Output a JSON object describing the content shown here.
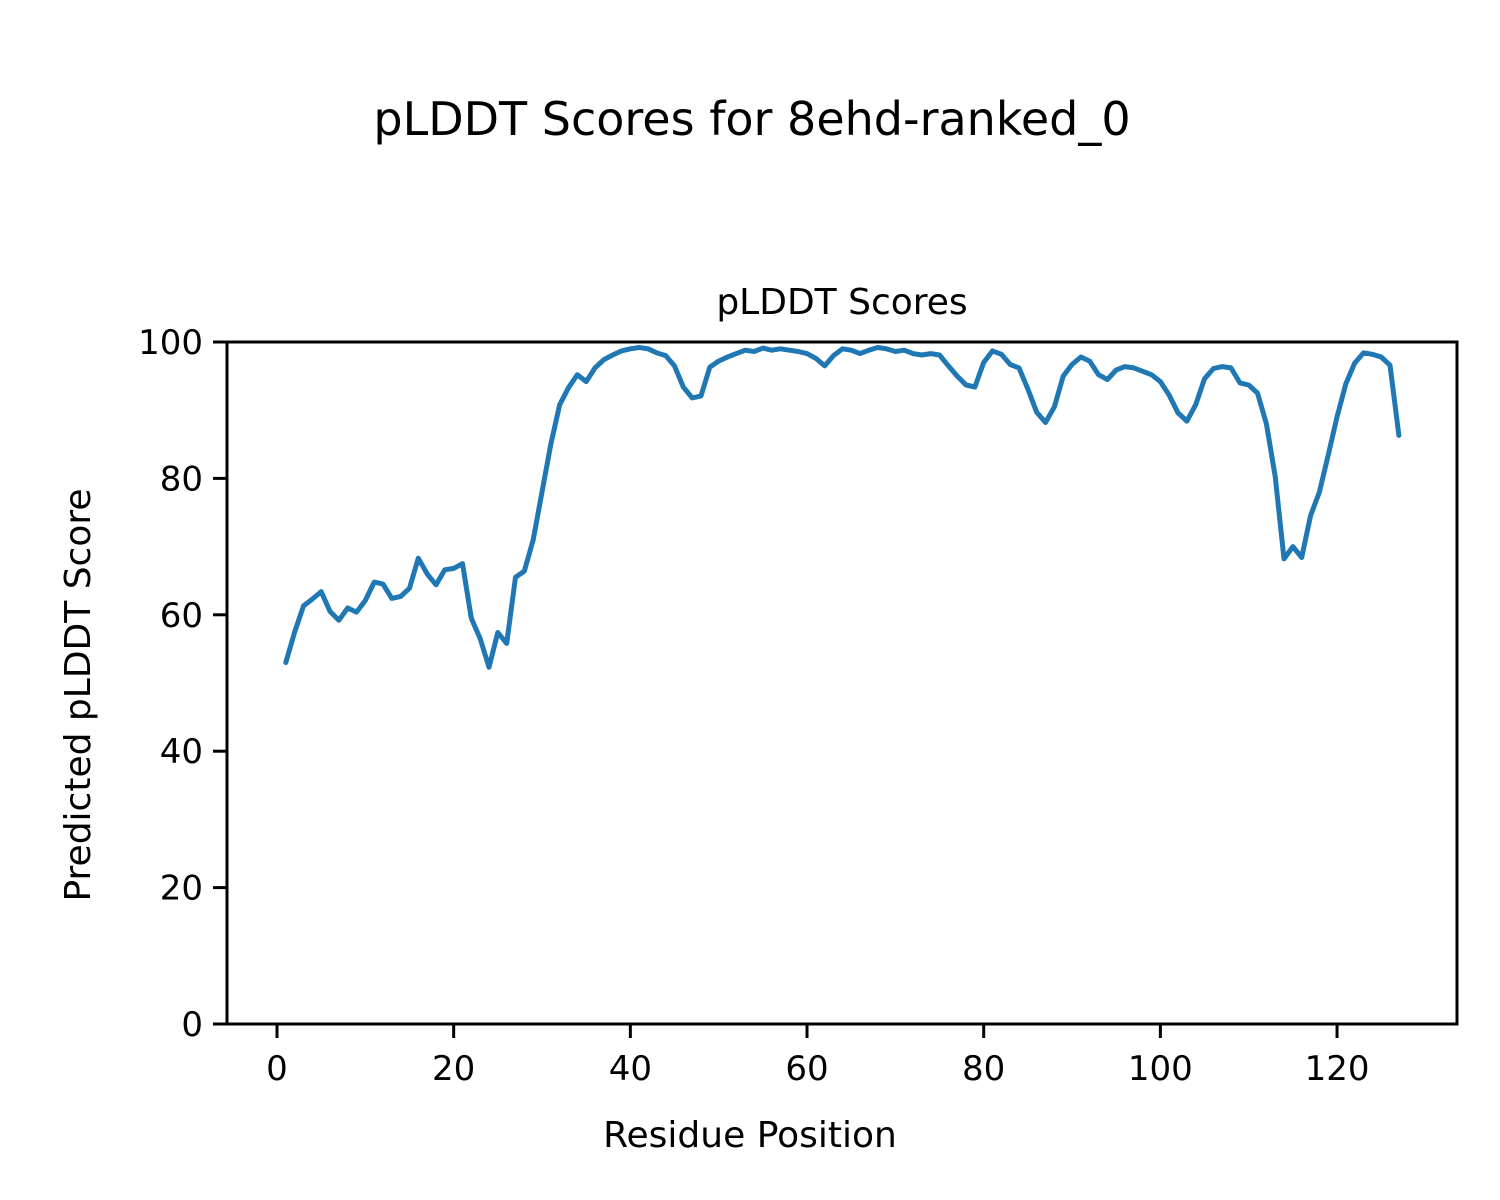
{
  "figure": {
    "title": "pLDDT Scores for 8ehd-ranked_0"
  },
  "chart_data": {
    "type": "line",
    "title": "pLDDT Scores for 8ehd-ranked_0",
    "axes_title": "pLDDT Scores",
    "xlabel": "Residue Position",
    "ylabel": "Predicted pLDDT Score",
    "x_ticks": [
      0,
      20,
      40,
      60,
      80,
      100,
      120
    ],
    "y_ticks": [
      0,
      20,
      40,
      60,
      80,
      100
    ],
    "xlim": [
      -5.66,
      133.58
    ],
    "ylim": [
      0,
      100
    ],
    "grid": false,
    "legend": "none",
    "line_color": "#1f77b4",
    "spine_color": "#000000",
    "series": [
      {
        "name": "pLDDT",
        "x_start": 1,
        "x_step": 1,
        "values": [
          53.0,
          57.5,
          61.3,
          62.3,
          63.4,
          60.5,
          59.2,
          61.0,
          60.4,
          62.1,
          64.8,
          64.5,
          62.4,
          62.7,
          63.9,
          68.3,
          66.0,
          64.4,
          66.6,
          66.8,
          67.5,
          59.5,
          56.5,
          52.3,
          57.4,
          55.8,
          65.5,
          66.4,
          71.0,
          78.0,
          85.0,
          90.8,
          93.3,
          95.2,
          94.2,
          96.2,
          97.4,
          98.1,
          98.7,
          99.0,
          99.2,
          99.0,
          98.4,
          98.0,
          96.5,
          93.4,
          91.8,
          92.1,
          96.3,
          97.2,
          97.8,
          98.3,
          98.8,
          98.6,
          99.1,
          98.8,
          99.0,
          98.8,
          98.6,
          98.3,
          97.6,
          96.5,
          98.0,
          99.0,
          98.8,
          98.3,
          98.8,
          99.2,
          99.0,
          98.6,
          98.8,
          98.3,
          98.1,
          98.3,
          98.1,
          96.5,
          95.0,
          93.7,
          93.4,
          97.0,
          98.7,
          98.2,
          96.7,
          96.2,
          93.1,
          89.7,
          88.2,
          90.5,
          95.0,
          96.7,
          97.8,
          97.2,
          95.2,
          94.5,
          95.9,
          96.4,
          96.2,
          95.7,
          95.2,
          94.2,
          92.2,
          89.6,
          88.4,
          90.8,
          94.6,
          96.1,
          96.4,
          96.2,
          94.0,
          93.7,
          92.5,
          88.0,
          80.3,
          68.2,
          70.0,
          68.4,
          74.5,
          78.0,
          83.4,
          89.0,
          93.9,
          96.9,
          98.4,
          98.2,
          97.8,
          96.6,
          86.3
        ]
      }
    ]
  }
}
